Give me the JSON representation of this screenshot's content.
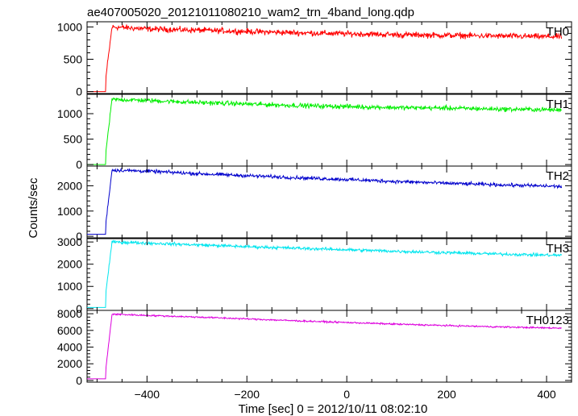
{
  "chart_data": {
    "type": "line",
    "title": "ae407005020_20121011080210_wam2_trn_4band_long.qdp",
    "xlabel": "Time [sec] 0 = 2012/10/11 08:02:10",
    "ylabel": "Counts/sec",
    "xlim": [
      -520,
      450
    ],
    "x_ticks": [
      -400,
      -200,
      0,
      200,
      400
    ],
    "x_tick_labels": [
      "−400",
      "−200",
      "0",
      "200",
      "400"
    ],
    "grid": false,
    "panels": [
      {
        "name": "TH0",
        "color": "#ff0000",
        "ylim": [
          -30,
          1080
        ],
        "y_ticks": [
          0,
          500,
          1000
        ],
        "y_tick_labels": [
          "0",
          "500",
          "1000"
        ],
        "onset_x": -482,
        "pre_level": 0,
        "series": {
          "x": [
            -520,
            -483,
            -482,
            -470,
            -400,
            -300,
            -200,
            -100,
            0,
            100,
            200,
            300,
            400,
            430
          ],
          "values": [
            0,
            0,
            240,
            1000,
            970,
            950,
            930,
            910,
            895,
            880,
            870,
            860,
            850,
            850
          ]
        },
        "noise": 55
      },
      {
        "name": "TH1",
        "color": "#00ee00",
        "ylim": [
          -30,
          1380
        ],
        "y_ticks": [
          0,
          500,
          1000
        ],
        "y_tick_labels": [
          "0",
          "500",
          "1000"
        ],
        "onset_x": -482,
        "pre_level": 0,
        "series": {
          "x": [
            -520,
            -483,
            -482,
            -470,
            -400,
            -300,
            -200,
            -100,
            0,
            100,
            200,
            300,
            400,
            430
          ],
          "values": [
            0,
            0,
            280,
            1280,
            1260,
            1220,
            1190,
            1160,
            1140,
            1120,
            1110,
            1090,
            1080,
            1070
          ]
        },
        "noise": 55
      },
      {
        "name": "TH2",
        "color": "#0000cc",
        "ylim": [
          -60,
          2780
        ],
        "y_ticks": [
          0,
          1000,
          2000
        ],
        "y_tick_labels": [
          "0",
          "1000",
          "2000"
        ],
        "onset_x": -482,
        "pre_level": 80,
        "series": {
          "x": [
            -520,
            -483,
            -482,
            -470,
            -400,
            -300,
            -200,
            -100,
            0,
            100,
            200,
            300,
            400,
            430
          ],
          "values": [
            80,
            80,
            600,
            2620,
            2580,
            2480,
            2400,
            2320,
            2250,
            2170,
            2100,
            2040,
            1990,
            1970
          ]
        },
        "noise": 85
      },
      {
        "name": "TH3",
        "color": "#00e5ee",
        "ylim": [
          -80,
          3150
        ],
        "y_ticks": [
          0,
          1000,
          2000,
          3000
        ],
        "y_tick_labels": [
          "0",
          "1000",
          "2000",
          "3000"
        ],
        "onset_x": -482,
        "pre_level": 50,
        "series": {
          "x": [
            -520,
            -483,
            -482,
            -470,
            -400,
            -300,
            -200,
            -100,
            0,
            100,
            200,
            300,
            400,
            430
          ],
          "values": [
            50,
            50,
            800,
            3000,
            2950,
            2870,
            2790,
            2720,
            2650,
            2580,
            2520,
            2460,
            2410,
            2400
          ]
        },
        "noise": 85
      },
      {
        "name": "TH0123",
        "color": "#dd00dd",
        "ylim": [
          -200,
          8400
        ],
        "y_ticks": [
          0,
          2000,
          4000,
          6000,
          8000
        ],
        "y_tick_labels": [
          "0",
          "2000",
          "4000",
          "6000",
          "8000"
        ],
        "onset_x": -482,
        "pre_level": 200,
        "series": {
          "x": [
            -520,
            -483,
            -482,
            -470,
            -400,
            -300,
            -200,
            -100,
            0,
            100,
            200,
            300,
            400,
            430
          ],
          "values": [
            200,
            200,
            1600,
            7950,
            7800,
            7600,
            7380,
            7150,
            6950,
            6750,
            6580,
            6430,
            6300,
            6280
          ]
        },
        "noise": 120
      }
    ]
  }
}
